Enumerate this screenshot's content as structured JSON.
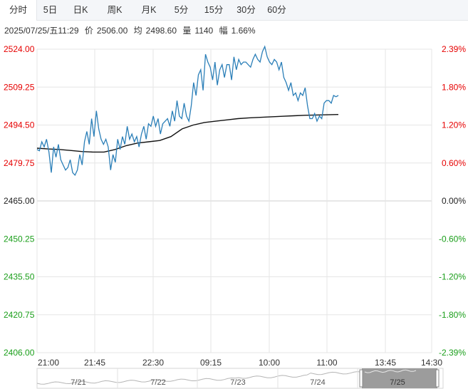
{
  "tabs": [
    "分时",
    "5日",
    "日K",
    "周K",
    "月K",
    "5分",
    "15分",
    "30分",
    "60分"
  ],
  "active_tab": 0,
  "info": {
    "datetime": "2025/07/25/五11:29",
    "price_label": "价",
    "price": "2506.00",
    "avg_label": "均",
    "avg": "2498.60",
    "vol_label": "量",
    "vol": "1140",
    "change_label": "幅",
    "change": "1.66%"
  },
  "colors": {
    "price_line": "#2b7fb8",
    "avg_line": "#111111",
    "up": "#e60000",
    "down": "#1a9e1a",
    "neutral": "#222222",
    "grid": "#e6e6e6"
  },
  "chart_data": {
    "type": "line",
    "title": "",
    "xlabel": "",
    "ylabel": "",
    "ylim": [
      2406.0,
      2524.0
    ],
    "pre_close": 2465.0,
    "y_ticks": [
      "2524.00",
      "2509.25",
      "2494.50",
      "2479.75",
      "2465.00",
      "2450.25",
      "2435.50",
      "2420.75",
      "2406.00"
    ],
    "pct_ticks": [
      "2.39%",
      "1.80%",
      "1.20%",
      "0.60%",
      "0.00%",
      "-0.60%",
      "-1.20%",
      "-1.80%",
      "-2.39%"
    ],
    "x_ticks": [
      "21:00",
      "21:45",
      "22:30",
      "09:15",
      "10:00",
      "11:00",
      "13:45",
      "14:30"
    ],
    "series": [
      {
        "values": [
          2485,
          2484.5,
          2488,
          2486,
          2489,
          2484,
          2476,
          2486,
          2482,
          2487,
          2481,
          2479,
          2477,
          2478,
          2481,
          2476,
          2475,
          2477,
          2483,
          2479,
          2488,
          2492,
          2487,
          2497,
          2490,
          2500,
          2493,
          2489,
          2487,
          2489,
          2486,
          2477,
          2483,
          2480,
          2489,
          2485,
          2490,
          2487,
          2494,
          2489,
          2491,
          2488,
          2490,
          2486,
          2491,
          2494,
          2489,
          2495,
          2494,
          2498,
          2494,
          2497,
          2491,
          2495,
          2496,
          2497,
          2494,
          2500,
          2496,
          2504,
          2498,
          2497,
          2503,
          2498,
          2496,
          2502,
          2511,
          2506,
          2514,
          2516,
          2508,
          2522,
          2519,
          2517,
          2512,
          2519,
          2510,
          2516,
          2518,
          2513,
          2518,
          2518,
          2512,
          2521,
          2516,
          2520,
          2518,
          2519,
          2519,
          2518,
          2517,
          2520,
          2522,
          2520,
          2519,
          2523,
          2525,
          2521,
          2519,
          2518,
          2520,
          2519,
          2516,
          2519,
          2513,
          2511,
          2508,
          2511,
          2506,
          2507,
          2504,
          2507,
          2506,
          2509,
          2502,
          2497,
          2497,
          2499,
          2496,
          2498,
          2497,
          2503,
          2504,
          2504,
          2503,
          2506,
          2505.5,
          2506
        ],
        "time_index_max": 140
      },
      {
        "values": [
          2485.5,
          2485.2,
          2485.0,
          2484.6,
          2484.2,
          2484.0,
          2484.0,
          2485.0,
          2486.5,
          2487.5,
          2488.0,
          2488.5,
          2490.0,
          2493.0,
          2494.5,
          2495.5,
          2496.0,
          2496.5,
          2497.0,
          2497.3,
          2497.5,
          2497.7,
          2497.9,
          2498.1,
          2498.3,
          2498.4,
          2498.5,
          2498.6
        ],
        "time_index_max": 140
      }
    ],
    "mini_map": {
      "labels": [
        "7/21",
        "7/22",
        "7/23",
        "7/24",
        "7/25"
      ]
    }
  }
}
